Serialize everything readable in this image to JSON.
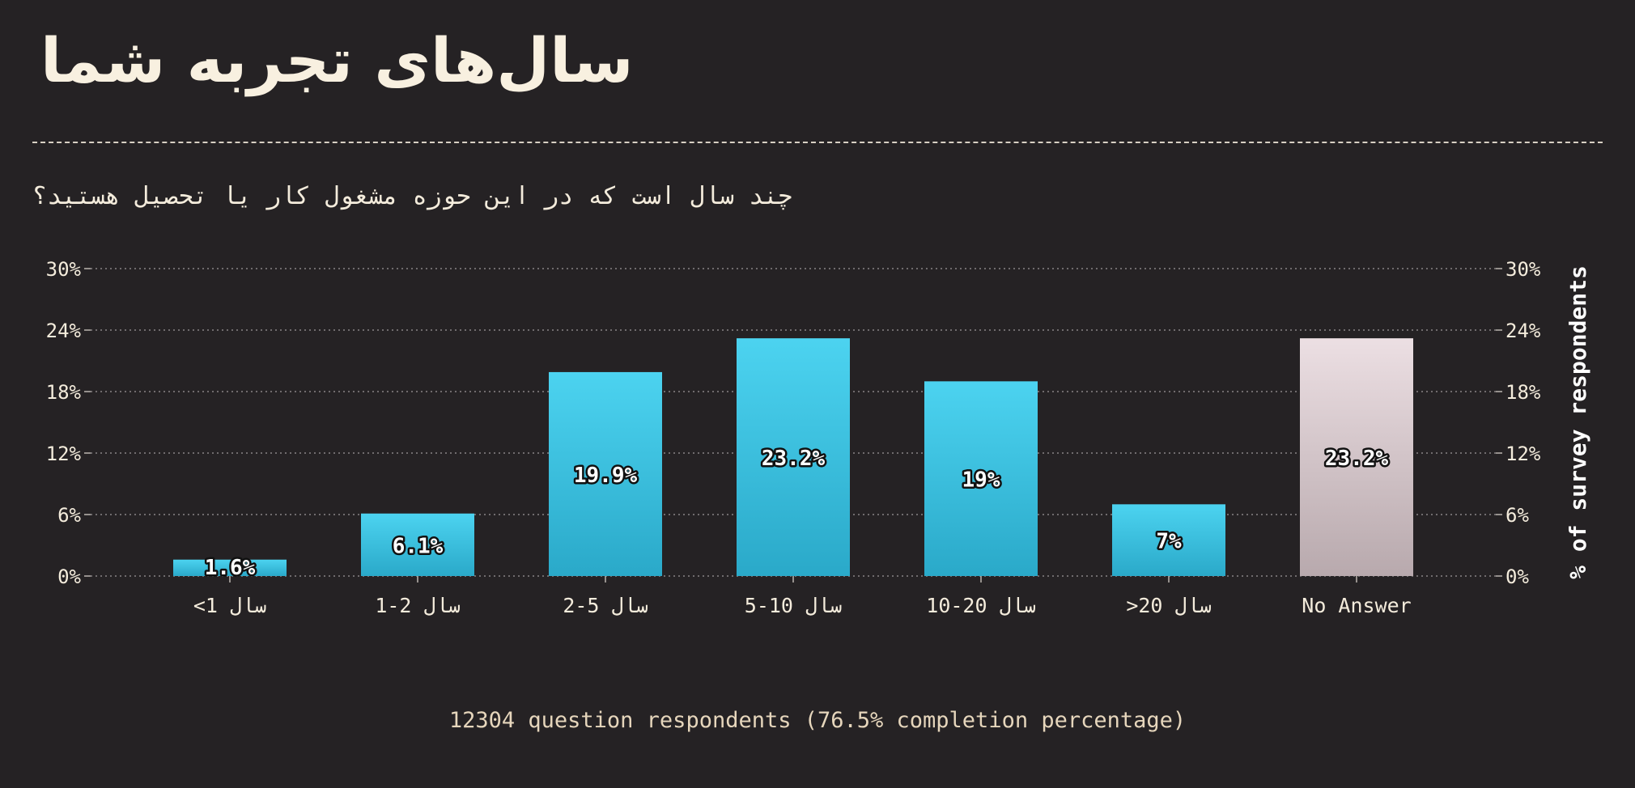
{
  "title": "سال‌های تجربه شما",
  "subtitle": "چند سال است که در این حوزه مشغول کار یا تحصیل هستید؟",
  "footer": "12304 question respondents (76.5% completion percentage)",
  "colors": {
    "background": "#252224",
    "bar_top": "#4cd3f0",
    "bar_bottom": "#2aa9c9",
    "noanswer_top": "#ecdfe3",
    "noanswer_bottom": "#b8a9ad",
    "text": "#f4ecdc"
  },
  "chart_data": {
    "type": "bar",
    "categories": [
      "<1 سال",
      "1-2 سال",
      "2-5 سال",
      "5-10 سال",
      "10-20 سال",
      ">20 سال",
      "No Answer"
    ],
    "values": [
      1.6,
      6.1,
      19.9,
      23.2,
      19,
      7,
      23.2
    ],
    "value_labels": [
      "1.6%",
      "6.1%",
      "19.9%",
      "23.2%",
      "19%",
      "7%",
      "23.2%"
    ],
    "ylabel": "% of survey respondents",
    "ylim": [
      0,
      30
    ],
    "yticks": [
      "0%",
      "6%",
      "12%",
      "18%",
      "24%",
      "30%"
    ],
    "grid": true
  }
}
